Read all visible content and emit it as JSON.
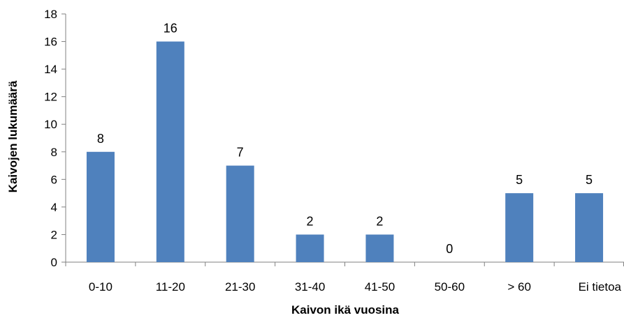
{
  "chart_data": {
    "type": "bar",
    "categories": [
      "0-10",
      "11-20",
      "21-30",
      "31-40",
      "41-50",
      "50-60",
      "> 60",
      "Ei tietoa"
    ],
    "values": [
      8,
      16,
      7,
      2,
      2,
      0,
      5,
      5
    ],
    "data_labels": [
      "8",
      "16",
      "7",
      "2",
      "2",
      "0",
      "5",
      "5"
    ],
    "xlabel": "Kaivon ikä vuosina",
    "ylabel": "Kaivojen lukumäärä",
    "ylim": [
      0,
      18
    ],
    "yticks": [
      0,
      2,
      4,
      6,
      8,
      10,
      12,
      14,
      16,
      18
    ],
    "ytick_labels": [
      "0",
      "2",
      "4",
      "6",
      "8",
      "10",
      "12",
      "14",
      "16",
      "18"
    ],
    "grid": false,
    "legend": "none",
    "bar_color": "#4F81BD"
  }
}
